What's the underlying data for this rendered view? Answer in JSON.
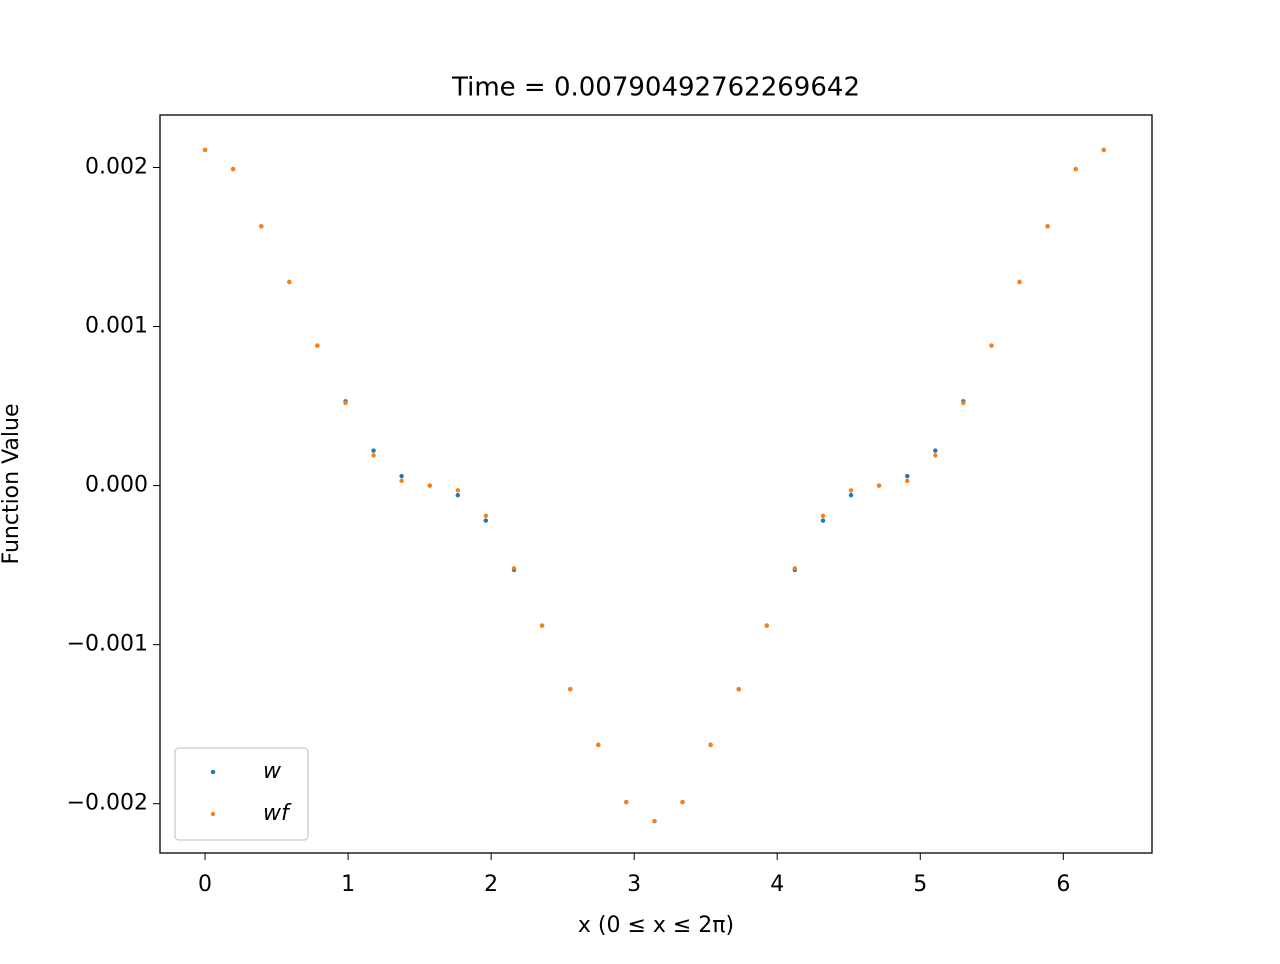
{
  "chart_data": {
    "type": "scatter",
    "title": "Time = 0.00790492762269642",
    "x_label": "x (0 ≤ x ≤ 2π)",
    "y_label": "Function Value",
    "x": [
      0,
      0.196,
      0.393,
      0.589,
      0.785,
      0.982,
      1.178,
      1.374,
      1.571,
      1.767,
      1.963,
      2.16,
      2.356,
      2.553,
      2.749,
      2.945,
      3.142,
      3.338,
      3.534,
      3.731,
      3.927,
      4.123,
      4.32,
      4.516,
      4.712,
      4.909,
      5.105,
      5.301,
      5.498,
      5.694,
      5.89,
      6.087,
      6.283
    ],
    "series": [
      {
        "name": "w",
        "color": "#1f77b4",
        "values": [
          0.00211,
          0.00199,
          0.00163,
          0.00128,
          0.00088,
          0.00053,
          0.00022,
          6e-05,
          0,
          -6e-05,
          -0.00022,
          -0.00053,
          -0.00088,
          -0.00128,
          -0.00163,
          -0.00199,
          -0.00211,
          -0.00199,
          -0.00163,
          -0.00128,
          -0.00088,
          -0.00053,
          -0.00022,
          -6e-05,
          0,
          6e-05,
          0.00022,
          0.00053,
          0.00088,
          0.00128,
          0.00163,
          0.00199,
          0.00211
        ]
      },
      {
        "name": "wf",
        "color": "#ff7f0e",
        "values": [
          0.00211,
          0.00199,
          0.00163,
          0.00128,
          0.00088,
          0.00052,
          0.00019,
          3e-05,
          0,
          -3e-05,
          -0.00019,
          -0.00052,
          -0.00088,
          -0.00128,
          -0.00163,
          -0.00199,
          -0.00211,
          -0.00199,
          -0.00163,
          -0.00128,
          -0.00088,
          -0.00052,
          -0.00019,
          -3e-05,
          0,
          3e-05,
          0.00019,
          0.00052,
          0.00088,
          0.00128,
          0.00163,
          0.00199,
          0.00211
        ]
      }
    ],
    "xlim": [
      -0.315,
      6.62
    ],
    "xticks": [
      0,
      1,
      2,
      3,
      4,
      5,
      6
    ],
    "ylim": [
      -0.00231,
      0.00233
    ],
    "yticks": [
      {
        "value": -0.002,
        "label": "−0.002"
      },
      {
        "value": -0.001,
        "label": "−0.001"
      },
      {
        "value": 0,
        "label": "0.000"
      },
      0.001,
      0.002
    ],
    "legend": "lower left"
  }
}
